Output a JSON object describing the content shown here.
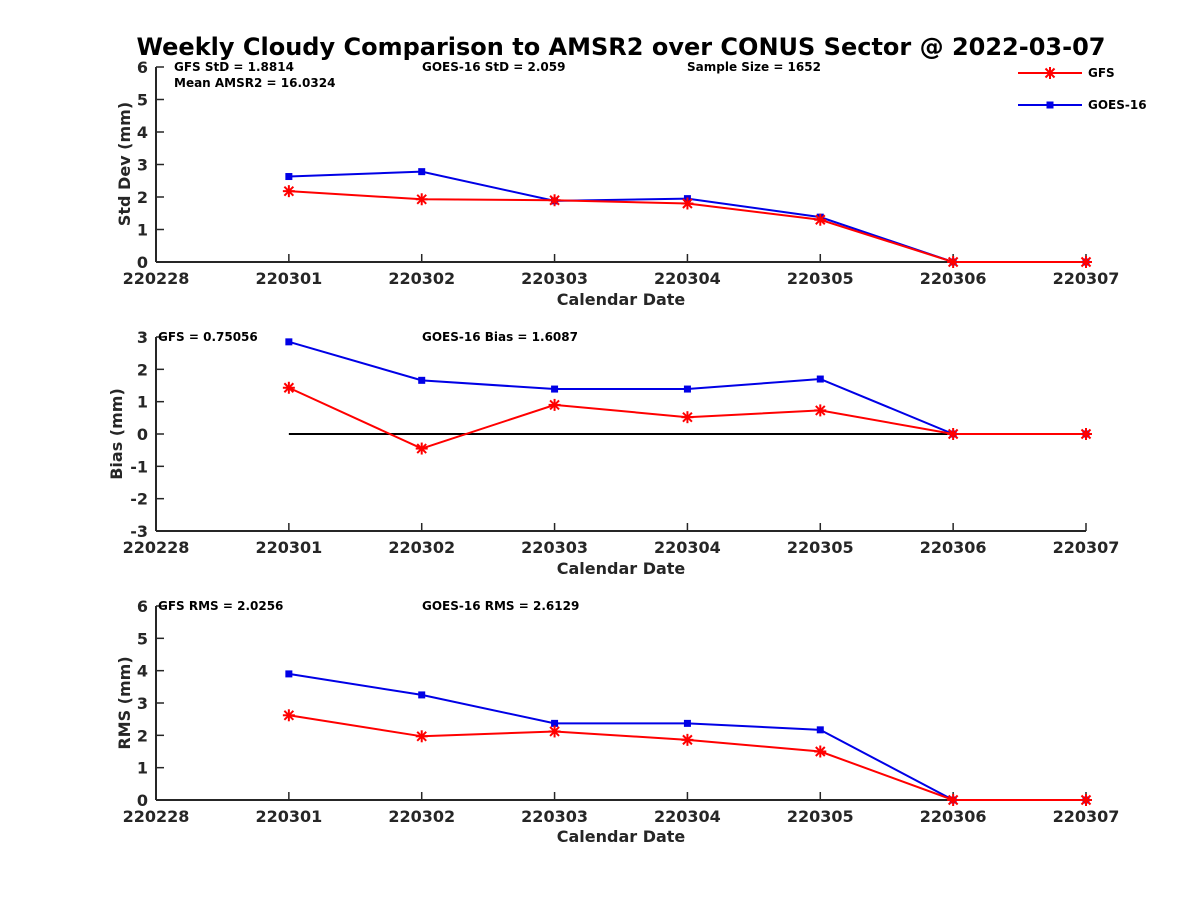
{
  "title": "Weekly Cloudy Comparison to AMSR2 over CONUS Sector @ 2022-03-07",
  "legend": [
    {
      "name": "GFS",
      "color": "#ff0000",
      "marker": "asterisk"
    },
    {
      "name": "GOES-16",
      "color": "#0000e6",
      "marker": "square"
    }
  ],
  "chart_data": [
    {
      "type": "line",
      "panel": "stddev",
      "xlabel": "Calendar Date",
      "ylabel": "Std Dev (mm)",
      "x_ticks": [
        "220228",
        "220301",
        "220302",
        "220303",
        "220304",
        "220305",
        "220306",
        "220307"
      ],
      "ylim": [
        0,
        6
      ],
      "y_ticks": [
        "0",
        "1",
        "2",
        "3",
        "4",
        "5",
        "6"
      ],
      "annotations": [
        "GFS StD = 1.8814",
        "GOES-16 StD = 2.059",
        "Sample Size = 1652",
        "Mean AMSR2 = 16.0324"
      ],
      "x": [
        "220301",
        "220302",
        "220303",
        "220304",
        "220305",
        "220306",
        "220307"
      ],
      "series": [
        {
          "name": "GFS",
          "color": "#ff0000",
          "values": [
            2.18,
            1.93,
            1.9,
            1.8,
            1.3,
            0.0,
            0.0
          ]
        },
        {
          "name": "GOES-16",
          "color": "#0000e6",
          "values": [
            2.63,
            2.78,
            1.88,
            1.95,
            1.38,
            0.0,
            0.0
          ]
        }
      ]
    },
    {
      "type": "line",
      "panel": "bias",
      "xlabel": "Calendar Date",
      "ylabel": "Bias (mm)",
      "x_ticks": [
        "220228",
        "220301",
        "220302",
        "220303",
        "220304",
        "220305",
        "220306",
        "220307"
      ],
      "ylim": [
        -3,
        3
      ],
      "y_ticks": [
        "-3",
        "-2",
        "-1",
        "0",
        "1",
        "2",
        "3"
      ],
      "annotations": [
        "GFS = 0.75056",
        "GOES-16 Bias  = 1.6087"
      ],
      "zero_line": true,
      "x": [
        "220301",
        "220302",
        "220303",
        "220304",
        "220305",
        "220306",
        "220307"
      ],
      "series": [
        {
          "name": "GFS",
          "color": "#ff0000",
          "values": [
            1.43,
            -0.45,
            0.9,
            0.52,
            0.73,
            0.0,
            0.0
          ]
        },
        {
          "name": "GOES-16",
          "color": "#0000e6",
          "values": [
            2.85,
            1.66,
            1.39,
            1.39,
            1.7,
            0.0,
            0.0
          ]
        }
      ]
    },
    {
      "type": "line",
      "panel": "rms",
      "xlabel": "Calendar Date",
      "ylabel": "RMS (mm)",
      "x_ticks": [
        "220228",
        "220301",
        "220302",
        "220303",
        "220304",
        "220305",
        "220306",
        "220307"
      ],
      "ylim": [
        0,
        6
      ],
      "y_ticks": [
        "0",
        "1",
        "2",
        "3",
        "4",
        "5",
        "6"
      ],
      "annotations": [
        "GFS RMS = 2.0256",
        "GOES-16 RMS = 2.6129"
      ],
      "x": [
        "220301",
        "220302",
        "220303",
        "220304",
        "220305",
        "220306",
        "220307"
      ],
      "series": [
        {
          "name": "GFS",
          "color": "#ff0000",
          "values": [
            2.62,
            1.97,
            2.12,
            1.86,
            1.5,
            0.0,
            0.0
          ]
        },
        {
          "name": "GOES-16",
          "color": "#0000e6",
          "values": [
            3.9,
            3.25,
            2.37,
            2.37,
            2.17,
            0.0,
            0.0
          ]
        }
      ]
    }
  ]
}
